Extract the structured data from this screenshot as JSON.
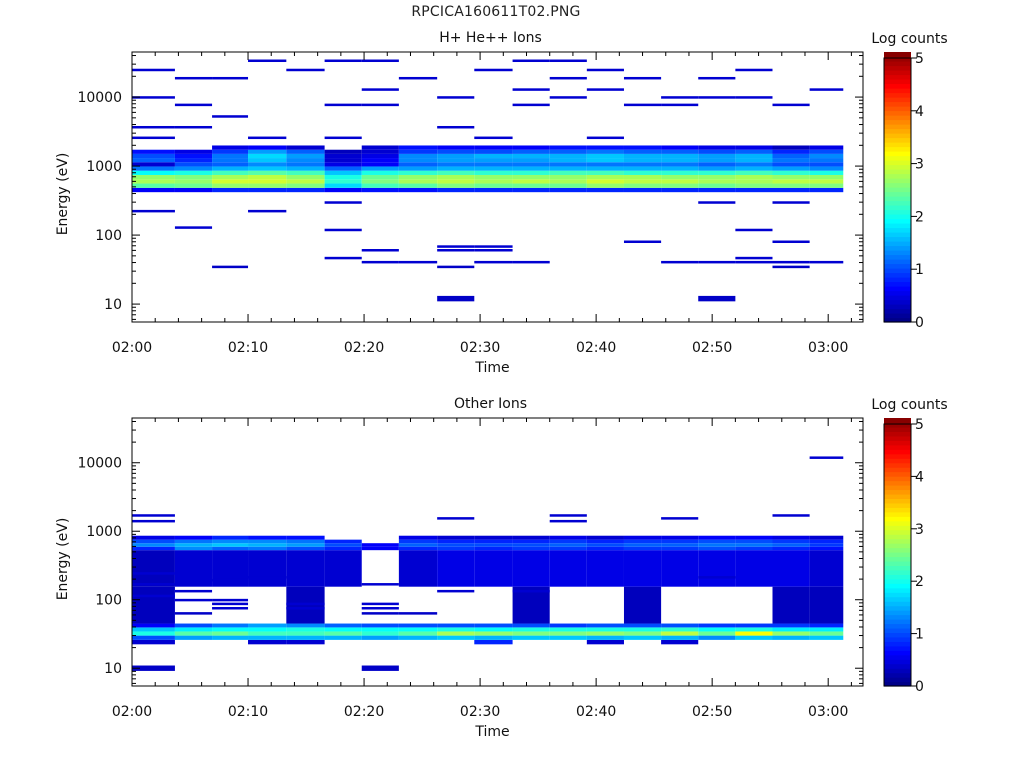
{
  "figure_title": "RPCICA160611T02.PNG",
  "chart_data": [
    {
      "type": "heatmap",
      "title": "H+ He++ Ions",
      "xlabel": "Time",
      "ylabel": "Energy (eV)",
      "x_ticks": [
        "02:00",
        "02:10",
        "02:20",
        "02:30",
        "02:40",
        "02:50",
        "03:00"
      ],
      "x_range_min": [
        0,
        63
      ],
      "y_scale": "log",
      "ylim": [
        5.5,
        45000
      ],
      "y_ticks": [
        10,
        100,
        1000,
        10000
      ],
      "y_tick_labels": [
        "10",
        "100",
        "1000",
        "10000"
      ],
      "colorbar": {
        "label": "Log counts",
        "range": [
          0,
          5
        ],
        "ticks": [
          "0",
          "1",
          "2",
          "3",
          "4",
          "5"
        ]
      },
      "time_bins_min": [
        0,
        3.7,
        6.9,
        10.0,
        13.3,
        16.6,
        19.8,
        23.0,
        26.3,
        29.5,
        32.8,
        36.0,
        39.2,
        42.4,
        45.6,
        48.8,
        52.0,
        55.2,
        58.4,
        61.3
      ],
      "rows": [
        {
          "e": 450,
          "v": [
            0.6,
            0.6,
            0.8,
            0.8,
            0.8,
            0.6,
            0.7,
            0.7,
            0.8,
            0.8,
            0.8,
            0.8,
            0.8,
            0.8,
            0.8,
            0.8,
            0.8,
            0.8,
            0.8
          ]
        },
        {
          "e": 520,
          "v": [
            2.3,
            2.4,
            2.6,
            2.6,
            2.5,
            1.7,
            2.2,
            2.3,
            2.5,
            2.4,
            2.4,
            2.4,
            2.6,
            2.5,
            2.5,
            2.4,
            2.5,
            2.5,
            2.5
          ]
        },
        {
          "e": 600,
          "v": [
            2.7,
            2.6,
            2.9,
            2.9,
            2.8,
            2.1,
            2.5,
            2.7,
            2.8,
            2.7,
            2.8,
            2.7,
            2.9,
            2.8,
            2.8,
            2.7,
            2.7,
            2.8,
            2.8
          ]
        },
        {
          "e": 690,
          "v": [
            2.6,
            2.5,
            2.7,
            2.8,
            2.6,
            2.0,
            2.4,
            2.6,
            2.7,
            2.6,
            2.6,
            2.6,
            2.7,
            2.7,
            2.6,
            2.6,
            2.7,
            2.6,
            2.6
          ]
        },
        {
          "e": 800,
          "v": [
            1.9,
            2.0,
            2.2,
            2.3,
            2.2,
            1.6,
            2.0,
            2.1,
            2.2,
            2.1,
            2.1,
            2.2,
            2.2,
            2.1,
            2.1,
            2.1,
            2.2,
            2.1,
            2.0
          ]
        },
        {
          "e": 920,
          "v": [
            1.2,
            1.3,
            1.5,
            1.6,
            1.5,
            1.1,
            1.4,
            1.4,
            1.5,
            1.5,
            1.5,
            1.5,
            1.5,
            1.5,
            1.5,
            1.4,
            1.5,
            1.4,
            1.3
          ]
        },
        {
          "e": 1060,
          "v": [
            0.4,
            1.0,
            1.1,
            1.3,
            1.2,
            0.5,
            0.6,
            1.1,
            1.2,
            1.2,
            1.2,
            1.2,
            1.2,
            1.2,
            1.2,
            1.1,
            1.2,
            1.0,
            1.0
          ]
        },
        {
          "e": 1220,
          "v": [
            1.1,
            0.8,
            1.2,
            1.6,
            1.3,
            0.4,
            0.6,
            1.3,
            1.4,
            1.4,
            1.4,
            1.5,
            1.6,
            1.5,
            1.5,
            1.4,
            1.5,
            1.2,
            1.2
          ]
        },
        {
          "e": 1400,
          "v": [
            1.0,
            0.7,
            1.2,
            1.7,
            1.4,
            0.4,
            0.5,
            1.3,
            1.4,
            1.5,
            1.5,
            1.5,
            1.6,
            1.5,
            1.5,
            1.4,
            1.5,
            1.1,
            1.3
          ]
        },
        {
          "e": 1610,
          "v": [
            0.7,
            0.5,
            0.9,
            1.4,
            1.1,
            0.3,
            0.4,
            0.9,
            1.0,
            1.0,
            1.1,
            1.1,
            1.2,
            1.1,
            1.1,
            1.0,
            1.1,
            0.8,
            1.0
          ]
        },
        {
          "e": 1850,
          "v": [
            null,
            null,
            0.5,
            0.6,
            0.4,
            null,
            0.4,
            0.7,
            0.6,
            0.6,
            0.6,
            0.7,
            0.7,
            0.7,
            0.6,
            0.5,
            0.5,
            0.3,
            0.5
          ]
        }
      ],
      "sparse_rows": [
        {
          "e": 12,
          "b": [
            8,
            15
          ],
          "v": 0.35
        },
        {
          "e": 35,
          "b": [
            2,
            8,
            17
          ],
          "v": 0.35
        },
        {
          "e": 41,
          "b": [
            6,
            7,
            9,
            10,
            14,
            15,
            16,
            17,
            18
          ],
          "v": 0.4
        },
        {
          "e": 47,
          "b": [
            5,
            16
          ],
          "v": 0.4
        },
        {
          "e": 61,
          "b": [
            6,
            8,
            9
          ],
          "v": 0.4
        },
        {
          "e": 69,
          "b": [
            8,
            9
          ],
          "v": 0.4
        },
        {
          "e": 81,
          "b": [
            13,
            17
          ],
          "v": 0.4
        },
        {
          "e": 120,
          "b": [
            5,
            16
          ],
          "v": 0.4
        },
        {
          "e": 130,
          "b": [
            1
          ],
          "v": 0.4
        },
        {
          "e": 225,
          "b": [
            0,
            3
          ],
          "v": 0.4
        },
        {
          "e": 300,
          "b": [
            5,
            15,
            17
          ],
          "v": 0.4
        },
        {
          "e": 2600,
          "b": [
            0,
            3,
            5,
            9,
            12
          ],
          "v": 0.4
        },
        {
          "e": 3700,
          "b": [
            0,
            1,
            8
          ],
          "v": 0.4
        },
        {
          "e": 5300,
          "b": [
            2
          ],
          "v": 0.4
        },
        {
          "e": 7800,
          "b": [
            1,
            5,
            6,
            10,
            13,
            14,
            17
          ],
          "v": 0.4
        },
        {
          "e": 10000,
          "b": [
            0,
            8,
            11,
            14,
            15,
            16
          ],
          "v": 0.4
        },
        {
          "e": 13000,
          "b": [
            6,
            10,
            12,
            18
          ],
          "v": 0.4
        },
        {
          "e": 19000,
          "b": [
            1,
            2,
            7,
            11,
            13,
            15
          ],
          "v": 0.4
        },
        {
          "e": 25000,
          "b": [
            0,
            4,
            9,
            12,
            16
          ],
          "v": 0.4
        },
        {
          "e": 34000,
          "b": [
            3,
            5,
            6,
            10,
            11
          ],
          "v": 0.4
        }
      ]
    },
    {
      "type": "heatmap",
      "title": "Other Ions",
      "xlabel": "Time",
      "ylabel": "Energy (eV)",
      "x_ticks": [
        "02:00",
        "02:10",
        "02:20",
        "02:30",
        "02:40",
        "02:50",
        "03:00"
      ],
      "x_range_min": [
        0,
        63
      ],
      "y_scale": "log",
      "ylim": [
        5.5,
        45000
      ],
      "y_ticks": [
        10,
        100,
        1000,
        10000
      ],
      "y_tick_labels": [
        "10",
        "100",
        "1000",
        "10000"
      ],
      "colorbar": {
        "label": "Log counts",
        "range": [
          0,
          5
        ],
        "ticks": [
          "0",
          "1",
          "2",
          "3",
          "4",
          "5"
        ]
      },
      "time_bins_min": [
        0,
        3.7,
        6.9,
        10.0,
        13.3,
        16.6,
        19.8,
        23.0,
        26.3,
        29.5,
        32.8,
        36.0,
        39.2,
        42.4,
        45.6,
        48.8,
        52.0,
        55.2,
        58.4,
        61.3
      ],
      "rows": [
        {
          "e": 24,
          "v": [
            0.4,
            null,
            null,
            0.4,
            0.4,
            null,
            null,
            null,
            null,
            0.8,
            null,
            null,
            0.4,
            null,
            0.4,
            null,
            null,
            null,
            null
          ]
        },
        {
          "e": 28,
          "v": [
            1.0,
            1.4,
            1.5,
            1.5,
            1.5,
            1.5,
            1.4,
            1.5,
            1.6,
            1.5,
            1.6,
            1.6,
            1.5,
            1.6,
            1.5,
            1.3,
            1.6,
            1.5,
            1.6
          ]
        },
        {
          "e": 32,
          "v": [
            2.0,
            2.3,
            2.4,
            2.2,
            2.2,
            2.3,
            2.1,
            2.3,
            2.7,
            2.6,
            2.5,
            2.5,
            2.6,
            2.5,
            2.8,
            2.4,
            3.1,
            2.6,
            2.4
          ]
        },
        {
          "e": 37,
          "v": [
            1.6,
            1.8,
            1.9,
            1.9,
            2.0,
            1.9,
            1.9,
            1.9,
            2.0,
            1.9,
            2.0,
            2.0,
            2.0,
            2.0,
            2.1,
            1.9,
            2.0,
            1.8,
            1.8
          ]
        },
        {
          "e": 42,
          "v": [
            0.6,
            1.0,
            1.2,
            1.4,
            1.3,
            1.1,
            1.0,
            1.0,
            1.0,
            1.0,
            1.0,
            0.9,
            1.0,
            1.0,
            1.0,
            0.9,
            0.9,
            0.9,
            0.8
          ]
        },
        {
          "e": 48,
          "v": [
            0.3,
            null,
            null,
            null,
            0.3,
            null,
            null,
            null,
            null,
            null,
            0.3,
            null,
            null,
            0.3,
            null,
            null,
            null,
            0.3,
            0.3
          ]
        },
        {
          "e": 500,
          "v": [
            0.3,
            0.4,
            0.4,
            0.4,
            0.4,
            0.4,
            null,
            0.4,
            0.5,
            0.5,
            0.5,
            0.5,
            0.5,
            0.5,
            0.5,
            0.5,
            0.5,
            0.5,
            0.4
          ]
        },
        {
          "e": 560,
          "v": [
            0.8,
            1.3,
            1.1,
            1.2,
            1.0,
            0.8,
            0.6,
            0.8,
            0.9,
            0.8,
            0.9,
            0.9,
            0.8,
            0.9,
            0.9,
            1.0,
            0.9,
            0.8,
            0.7
          ]
        },
        {
          "e": 630,
          "v": [
            1.3,
            1.5,
            1.6,
            1.5,
            1.4,
            1.0,
            0.6,
            1.1,
            1.0,
            1.0,
            1.0,
            1.1,
            1.0,
            1.1,
            1.1,
            1.2,
            1.2,
            1.1,
            0.9
          ]
        },
        {
          "e": 710,
          "v": [
            1.0,
            1.2,
            1.3,
            1.3,
            1.2,
            0.8,
            null,
            0.9,
            0.8,
            0.8,
            0.8,
            0.9,
            0.8,
            0.9,
            0.9,
            1.0,
            1.0,
            0.9,
            0.8
          ]
        },
        {
          "e": 800,
          "v": [
            0.5,
            0.6,
            0.8,
            0.7,
            0.7,
            null,
            null,
            0.5,
            0.4,
            0.4,
            0.4,
            0.5,
            0.4,
            0.5,
            0.5,
            0.6,
            0.6,
            0.5,
            0.4
          ]
        }
      ],
      "sparse_rows": [
        {
          "e": 10,
          "b": [
            0,
            6
          ],
          "v": 0.35
        },
        {
          "e": 64,
          "b": [
            1,
            6,
            7
          ],
          "v": 0.35
        },
        {
          "e": 76,
          "b": [
            2,
            4,
            6
          ],
          "v": 0.4
        },
        {
          "e": 88,
          "b": [
            2,
            4,
            6
          ],
          "v": 0.4
        },
        {
          "e": 100,
          "b": [
            1,
            2
          ],
          "v": 0.4
        },
        {
          "e": 115,
          "b": [
            0
          ],
          "v": 0.4
        },
        {
          "e": 135,
          "b": [
            1,
            8,
            10
          ],
          "v": 0.4
        },
        {
          "e": 170,
          "b": [
            0,
            1,
            6
          ],
          "v": 0.4
        },
        {
          "e": 195,
          "b": [
            2
          ],
          "v": 0.4
        },
        {
          "e": 215,
          "b": [
            3,
            15
          ],
          "v": 0.4
        },
        {
          "e": 245,
          "b": [
            0
          ],
          "v": 0.4
        },
        {
          "e": 265,
          "b": [
            1
          ],
          "v": 0.4
        },
        {
          "e": 1420,
          "b": [
            0,
            11
          ],
          "v": 0.4
        },
        {
          "e": 1560,
          "b": [
            8,
            14
          ],
          "v": 0.4
        },
        {
          "e": 1720,
          "b": [
            0,
            11,
            17
          ],
          "v": 0.4
        },
        {
          "e": 12000,
          "b": [
            18
          ],
          "v": 0.4
        }
      ]
    }
  ]
}
